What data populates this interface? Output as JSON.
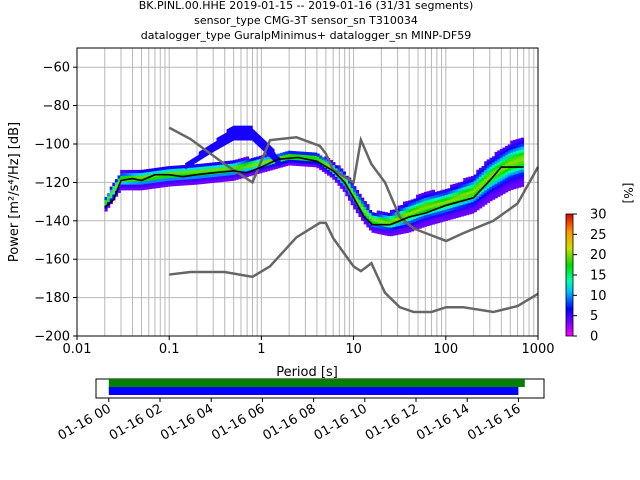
{
  "title": {
    "line1": "BK.PINL.00.HHE   2019-01-15 -- 2019-01-16  (31/31 segments)",
    "line2": "sensor_type CMG-3T sensor_sn T310034",
    "line3": "datalogger_type GuralpMinimus+ datalogger_sn MINP-DF59"
  },
  "chart_data": [
    {
      "type": "heatmap",
      "xlabel": "Period [s]",
      "ylabel": "Power [m²/s⁴/Hz] [dB]",
      "xscale": "log",
      "xlim": [
        0.01,
        1000
      ],
      "ylim": [
        -200,
        -50
      ],
      "xticks": [
        {
          "v": 0.01,
          "label": "0.01"
        },
        {
          "v": 0.1,
          "label": "0.1"
        },
        {
          "v": 1,
          "label": "1"
        },
        {
          "v": 10,
          "label": "10"
        },
        {
          "v": 100,
          "label": "100"
        },
        {
          "v": 1000,
          "label": "1000"
        }
      ],
      "yticks": [
        -200,
        -180,
        -160,
        -140,
        -120,
        -100,
        -80,
        -60
      ],
      "grid": true,
      "noise_models": {
        "color": "#666666",
        "high": [
          [
            0.1,
            -91.5
          ],
          [
            0.17,
            -97.4
          ],
          [
            0.4,
            -110.5
          ],
          [
            0.8,
            -120
          ],
          [
            1.24,
            -98
          ],
          [
            2.4,
            -96.5
          ],
          [
            4.3,
            -101
          ],
          [
            5,
            -105
          ],
          [
            6,
            -113.5
          ],
          [
            10,
            -120
          ],
          [
            12,
            -97.9
          ],
          [
            15.6,
            -110.5
          ],
          [
            21.9,
            -120
          ],
          [
            31.6,
            -138
          ],
          [
            45,
            -144
          ],
          [
            70,
            -147.6
          ],
          [
            101,
            -150.5
          ],
          [
            154,
            -146.5
          ],
          [
            328,
            -140
          ],
          [
            600,
            -131
          ],
          [
            1000,
            -112
          ]
        ],
        "low": [
          [
            0.1,
            -168
          ],
          [
            0.17,
            -166.7
          ],
          [
            0.4,
            -166.7
          ],
          [
            0.8,
            -169.2
          ],
          [
            1.24,
            -163.7
          ],
          [
            2.4,
            -148.6
          ],
          [
            4.3,
            -141.1
          ],
          [
            5,
            -141.1
          ],
          [
            6,
            -149
          ],
          [
            10,
            -163.8
          ],
          [
            12,
            -166.2
          ],
          [
            15.6,
            -162.1
          ],
          [
            21.9,
            -177.5
          ],
          [
            31.6,
            -185
          ],
          [
            45,
            -187.5
          ],
          [
            70,
            -187.5
          ],
          [
            101,
            -185
          ],
          [
            154,
            -185
          ],
          [
            328,
            -187.5
          ],
          [
            600,
            -184.4
          ],
          [
            1000,
            -178
          ]
        ]
      },
      "mean_curve": {
        "color": "#000000",
        "points": [
          [
            0.02,
            -133
          ],
          [
            0.025,
            -129
          ],
          [
            0.03,
            -119
          ],
          [
            0.04,
            -118
          ],
          [
            0.05,
            -119
          ],
          [
            0.07,
            -116
          ],
          [
            0.1,
            -116
          ],
          [
            0.14,
            -117
          ],
          [
            0.2,
            -116
          ],
          [
            0.3,
            -115
          ],
          [
            0.5,
            -114
          ],
          [
            0.7,
            -115
          ],
          [
            1,
            -112
          ],
          [
            1.5,
            -108
          ],
          [
            2.5,
            -107
          ],
          [
            4,
            -109
          ],
          [
            6,
            -114
          ],
          [
            8,
            -120
          ],
          [
            10,
            -128
          ],
          [
            13,
            -138
          ],
          [
            16,
            -142
          ],
          [
            25,
            -142
          ],
          [
            40,
            -138
          ],
          [
            60,
            -136
          ],
          [
            100,
            -132
          ],
          [
            200,
            -128
          ],
          [
            300,
            -119
          ],
          [
            400,
            -112
          ],
          [
            700,
            -112
          ]
        ]
      },
      "density_bands": [
        {
          "name": "main",
          "lower": [
            [
              0.02,
              -136
            ],
            [
              0.03,
              -124
            ],
            [
              0.05,
              -124
            ],
            [
              0.1,
              -122
            ],
            [
              0.2,
              -121
            ],
            [
              0.5,
              -119
            ],
            [
              1,
              -115
            ],
            [
              2,
              -111
            ],
            [
              4,
              -112
            ],
            [
              6,
              -118
            ],
            [
              8,
              -125
            ],
            [
              10,
              -133
            ],
            [
              13,
              -141
            ],
            [
              16,
              -146
            ],
            [
              25,
              -148
            ],
            [
              40,
              -146
            ],
            [
              60,
              -143
            ],
            [
              100,
              -140
            ],
            [
              200,
              -136
            ],
            [
              300,
              -130
            ],
            [
              500,
              -124
            ],
            [
              700,
              -122
            ]
          ],
          "upper": [
            [
              0.02,
              -129
            ],
            [
              0.03,
              -115
            ],
            [
              0.05,
              -114
            ],
            [
              0.1,
              -112
            ],
            [
              0.2,
              -111
            ],
            [
              0.5,
              -109
            ],
            [
              1,
              -107
            ],
            [
              2,
              -104
            ],
            [
              4,
              -105
            ],
            [
              6,
              -110
            ],
            [
              8,
              -115
            ],
            [
              10,
              -122
            ],
            [
              13,
              -130
            ],
            [
              16,
              -136
            ],
            [
              25,
              -136
            ],
            [
              40,
              -130
            ],
            [
              60,
              -126
            ],
            [
              100,
              -124
            ],
            [
              200,
              -117
            ],
            [
              300,
              -108
            ],
            [
              500,
              -100
            ],
            [
              700,
              -97
            ]
          ]
        },
        {
          "name": "upper-outlier",
          "lower": [
            [
              0.15,
              -113
            ],
            [
              0.3,
              -104
            ],
            [
              0.5,
              -98
            ],
            [
              0.8,
              -98
            ],
            [
              1.2,
              -106
            ],
            [
              1.6,
              -112
            ]
          ],
          "upper": [
            [
              0.15,
              -111
            ],
            [
              0.3,
              -100
            ],
            [
              0.5,
              -91
            ],
            [
              0.8,
              -92
            ],
            [
              1.2,
              -101
            ],
            [
              1.6,
              -108
            ]
          ]
        }
      ]
    },
    {
      "type": "timeline",
      "x_range": [
        "01-15 23:30",
        "01-16 17:00"
      ],
      "ticks": [
        "01-16 00",
        "01-16 02",
        "01-16 04",
        "01-16 06",
        "01-16 08",
        "01-16 10",
        "01-16 12",
        "01-16 14",
        "01-16 16"
      ],
      "bars": [
        {
          "color": "#008000",
          "start": "01-16 00",
          "end": "01-16 16:15"
        },
        {
          "color": "#0000ff",
          "start": "01-16 00",
          "end": "01-16 16:00"
        }
      ]
    }
  ],
  "colorbar": {
    "label": "[%]",
    "min": 0,
    "max": 30,
    "ticks": [
      0,
      5,
      10,
      15,
      20,
      25,
      30
    ]
  }
}
